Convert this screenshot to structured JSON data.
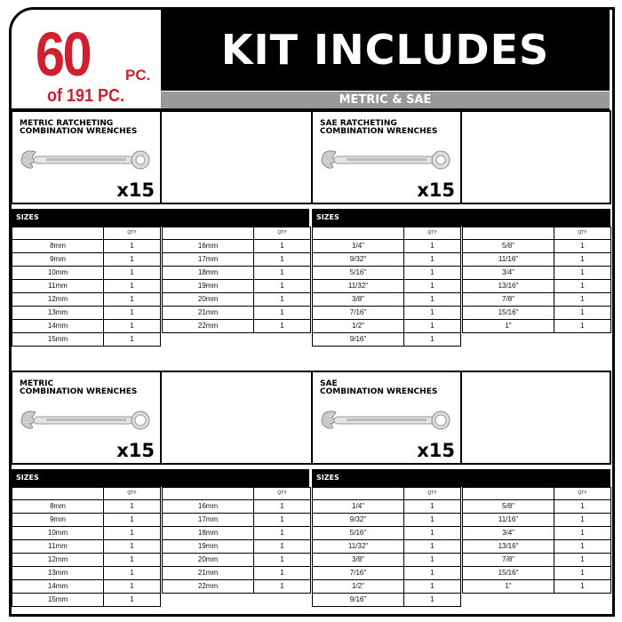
{
  "hero": {
    "count": "60",
    "count_unit": "PC.",
    "total": "of 191 PC.",
    "color": "#d0202e"
  },
  "banner": {
    "title": "KIT INCLUDES",
    "subtitle": "METRIC & SAE"
  },
  "sections": [
    {
      "title_line1": "METRIC RATCHETING",
      "title_line2": "COMBINATION WRENCHES",
      "count": "x15",
      "wrench_type": "ratcheting-wrench",
      "sizes_label": "SIZES",
      "qty_label": "QTY",
      "left": [
        [
          "8mm",
          "1"
        ],
        [
          "9mm",
          "1"
        ],
        [
          "10mm",
          "1"
        ],
        [
          "11mm",
          "1"
        ],
        [
          "12mm",
          "1"
        ],
        [
          "13mm",
          "1"
        ],
        [
          "14mm",
          "1"
        ],
        [
          "15mm",
          "1"
        ]
      ],
      "right": [
        [
          "16mm",
          "1"
        ],
        [
          "17mm",
          "1"
        ],
        [
          "18mm",
          "1"
        ],
        [
          "19mm",
          "1"
        ],
        [
          "20mm",
          "1"
        ],
        [
          "21mm",
          "1"
        ],
        [
          "22mm",
          "1"
        ]
      ]
    },
    {
      "title_line1": "SAE RATCHETING",
      "title_line2": "COMBINATION WRENCHES",
      "count": "x15",
      "wrench_type": "ratcheting-wrench",
      "sizes_label": "SIZES",
      "qty_label": "QTY",
      "left": [
        [
          "1/4\"",
          "1"
        ],
        [
          "9/32\"",
          "1"
        ],
        [
          "5/16\"",
          "1"
        ],
        [
          "11/32\"",
          "1"
        ],
        [
          "3/8\"",
          "1"
        ],
        [
          "7/16\"",
          "1"
        ],
        [
          "1/2\"",
          "1"
        ],
        [
          "9/16\"",
          "1"
        ]
      ],
      "right": [
        [
          "5/8\"",
          "1"
        ],
        [
          "11/16\"",
          "1"
        ],
        [
          "3/4\"",
          "1"
        ],
        [
          "13/16\"",
          "1"
        ],
        [
          "7/8\"",
          "1"
        ],
        [
          "15/16\"",
          "1"
        ],
        [
          "1\"",
          "1"
        ]
      ]
    },
    {
      "title_line1": "METRIC",
      "title_line2": "COMBINATION WRENCHES",
      "count": "x15",
      "wrench_type": "combination-wrench",
      "sizes_label": "SIZES",
      "qty_label": "QTY",
      "left": [
        [
          "8mm",
          "1"
        ],
        [
          "9mm",
          "1"
        ],
        [
          "10mm",
          "1"
        ],
        [
          "11mm",
          "1"
        ],
        [
          "12mm",
          "1"
        ],
        [
          "13mm",
          "1"
        ],
        [
          "14mm",
          "1"
        ],
        [
          "15mm",
          "1"
        ]
      ],
      "right": [
        [
          "16mm",
          "1"
        ],
        [
          "17mm",
          "1"
        ],
        [
          "18mm",
          "1"
        ],
        [
          "19mm",
          "1"
        ],
        [
          "20mm",
          "1"
        ],
        [
          "21mm",
          "1"
        ],
        [
          "22mm",
          "1"
        ]
      ]
    },
    {
      "title_line1": "SAE",
      "title_line2": "COMBINATION WRENCHES",
      "count": "x15",
      "wrench_type": "combination-wrench",
      "sizes_label": "SIZES",
      "qty_label": "QTY",
      "left": [
        [
          "1/4\"",
          "1"
        ],
        [
          "9/32\"",
          "1"
        ],
        [
          "5/16\"",
          "1"
        ],
        [
          "11/32\"",
          "1"
        ],
        [
          "3/8\"",
          "1"
        ],
        [
          "7/16\"",
          "1"
        ],
        [
          "1/2\"",
          "1"
        ],
        [
          "9/16\"",
          "1"
        ]
      ],
      "right": [
        [
          "5/8\"",
          "1"
        ],
        [
          "11/16\"",
          "1"
        ],
        [
          "3/4\"",
          "1"
        ],
        [
          "13/16\"",
          "1"
        ],
        [
          "7/8\"",
          "1"
        ],
        [
          "15/16\"",
          "1"
        ],
        [
          "1\"",
          "1"
        ]
      ]
    }
  ]
}
